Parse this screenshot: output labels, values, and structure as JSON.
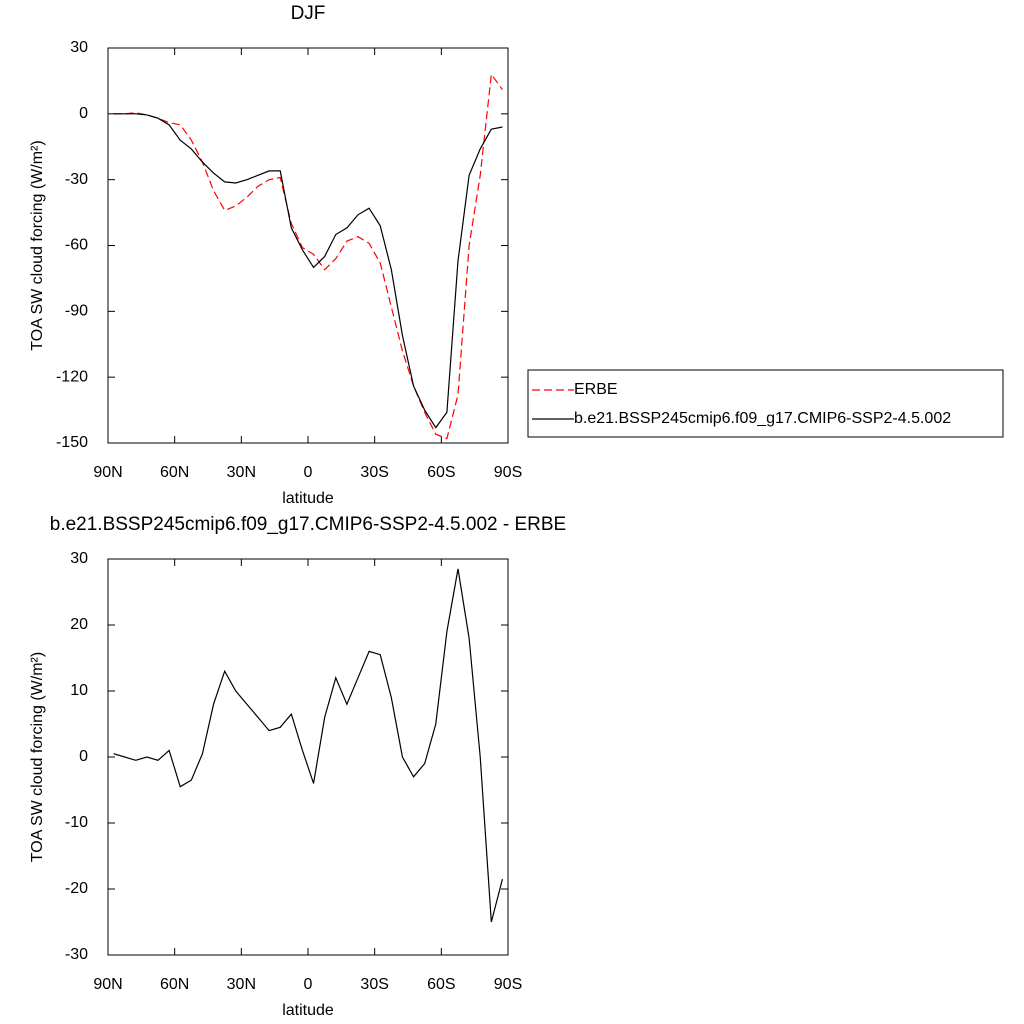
{
  "chart_data": [
    {
      "type": "line",
      "title": "DJF",
      "xlabel": "latitude",
      "ylabel": "TOA SW cloud forcing (W/m²)",
      "x": [
        87.5,
        82.5,
        77.5,
        72.5,
        67.5,
        62.5,
        57.5,
        52.5,
        47.5,
        42.5,
        37.5,
        32.5,
        27.5,
        22.5,
        17.5,
        12.5,
        7.5,
        2.5,
        -2.5,
        -7.5,
        -12.5,
        -17.5,
        -22.5,
        -27.5,
        -32.5,
        -37.5,
        -42.5,
        -47.5,
        -52.5,
        -57.5,
        -62.5,
        -67.5,
        -72.5,
        -77.5,
        -82.5,
        -87.5
      ],
      "series": [
        {
          "name": "ERBE",
          "color": "#ff0000",
          "dashed": true,
          "values": [
            0,
            0,
            0.5,
            -0.5,
            -2,
            -4,
            -5,
            -12,
            -22,
            -35,
            -44,
            -42,
            -38,
            -33,
            -30,
            -29,
            -50,
            -61,
            -64,
            -71,
            -66,
            -58,
            -56,
            -59,
            -68,
            -88,
            -108,
            -124,
            -136,
            -146,
            -148,
            -128,
            -60,
            -28,
            18,
            11
          ]
        },
        {
          "name": "b.e21.BSSP245cmip6.f09_g17.CMIP6-SSP2-4.5.002",
          "color": "#000000",
          "dashed": false,
          "values": [
            0,
            0,
            0,
            -0.5,
            -2,
            -5,
            -12,
            -16,
            -22,
            -27,
            -31,
            -31.5,
            -30,
            -28,
            -26,
            -26,
            -52,
            -62,
            -70,
            -65,
            -55,
            -52,
            -46,
            -43,
            -51,
            -71,
            -101,
            -124,
            -135,
            -143,
            -136,
            -67,
            -28,
            -16,
            -7,
            -6
          ]
        }
      ],
      "xlim": [
        90,
        -90
      ],
      "xticks": [
        {
          "value": 90,
          "label": "90N"
        },
        {
          "value": 60,
          "label": "60N"
        },
        {
          "value": 30,
          "label": "30N"
        },
        0,
        {
          "value": -30,
          "label": "30S"
        },
        {
          "value": -60,
          "label": "60S"
        },
        {
          "value": -90,
          "label": "90S"
        }
      ],
      "ylim": [
        -150,
        30
      ],
      "yticks": [
        -150,
        -120,
        -90,
        -60,
        -30,
        0,
        30
      ],
      "legend": "right"
    },
    {
      "type": "line",
      "title": "b.e21.BSSP245cmip6.f09_g17.CMIP6-SSP2-4.5.002 - ERBE",
      "xlabel": "latitude",
      "ylabel": "TOA SW cloud forcing (W/m²)",
      "x": [
        87.5,
        82.5,
        77.5,
        72.5,
        67.5,
        62.5,
        57.5,
        52.5,
        47.5,
        42.5,
        37.5,
        32.5,
        27.5,
        22.5,
        17.5,
        12.5,
        7.5,
        2.5,
        -2.5,
        -7.5,
        -12.5,
        -17.5,
        -22.5,
        -27.5,
        -32.5,
        -37.5,
        -42.5,
        -47.5,
        -52.5,
        -57.5,
        -62.5,
        -67.5,
        -72.5,
        -77.5,
        -82.5,
        -87.5
      ],
      "series": [
        {
          "color": "#000000",
          "dashed": false,
          "values": [
            0.5,
            0,
            -0.5,
            0,
            -0.5,
            1,
            -4.5,
            -3.5,
            0.5,
            8,
            13,
            10,
            8,
            6,
            4,
            4.5,
            6.5,
            1,
            -4,
            6,
            12,
            8,
            12,
            16,
            15.5,
            9,
            0,
            -3,
            -1,
            5,
            19,
            28.5,
            18,
            0,
            -25,
            -18.5
          ]
        }
      ],
      "xlim": [
        90,
        -90
      ],
      "xticks": [
        {
          "value": 90,
          "label": "90N"
        },
        {
          "value": 60,
          "label": "60N"
        },
        {
          "value": 30,
          "label": "30N"
        },
        0,
        {
          "value": -30,
          "label": "30S"
        },
        {
          "value": -60,
          "label": "60S"
        },
        {
          "value": -90,
          "label": "90S"
        }
      ],
      "ylim": [
        -30,
        30
      ],
      "yticks": [
        -30,
        -20,
        -10,
        0,
        10,
        20,
        30
      ]
    }
  ]
}
